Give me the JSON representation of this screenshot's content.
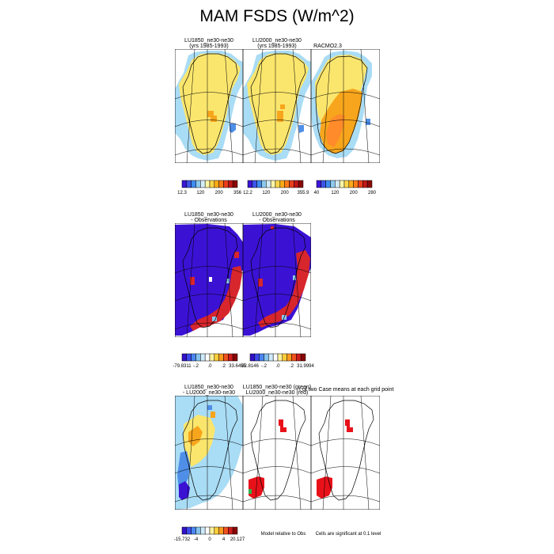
{
  "page_title": "MAM FSDS (W/m^2)",
  "row1": {
    "panel_titles": [
      "LU1850_ne30-ne30",
      "LU2000_ne30-ne30",
      "RACMO2.3"
    ],
    "panel_subtitles": [
      "(yrs 1985-1993)",
      "(yrs 1985-1993)",
      ""
    ],
    "colorbar_labels": [
      [
        "12.3",
        "120",
        "200",
        "356"
      ],
      [
        "12.2",
        "120",
        "200",
        "355.9"
      ],
      [
        "40",
        "120",
        "200",
        "280"
      ]
    ]
  },
  "row2": {
    "panel_titles": [
      "LU1850_ne30-ne30",
      "LU2000_ne30-ne30"
    ],
    "panel_subtitles": [
      "- Observations",
      "- Observations"
    ],
    "colorbar_labels": [
      [
        "-79.8311",
        "-.2",
        ".0",
        ".2",
        "33.6455"
      ],
      [
        "82.8146",
        "-.2",
        ".0",
        ".2",
        "31.9994"
      ]
    ]
  },
  "row3": {
    "panel_titles": [
      "LU1850_ne30-ne30",
      "LU1850_ne30-ne30 (green)",
      "t of two Case means at each grid point"
    ],
    "panel_subtitles": [
      "- LU2000_ne30-ne30",
      "LU2000_ne30-ne30 (red)",
      ""
    ],
    "colorbar_labels": [
      "-15.732",
      "-4",
      "0",
      "4",
      "20.127"
    ],
    "notes": [
      "Model relative to Obs",
      "Cells are significant at 0.1 level"
    ]
  },
  "colors": {
    "abs_palette": [
      "#3a16d6",
      "#3e55e8",
      "#3f8cf0",
      "#8ec8ef",
      "#d4ecf8",
      "#fff7a8",
      "#ffd84a",
      "#ffac1a",
      "#ff7a16",
      "#e8401e",
      "#c01818",
      "#8c0808"
    ],
    "diff_palette": [
      "#3310c8",
      "#3d4cec",
      "#4a86f2",
      "#86c3ef",
      "#cdeafb",
      "#ffffff",
      "#fff29a",
      "#ffce3a",
      "#ff9b20",
      "#f0521e",
      "#cc1d1d",
      "#8a0606"
    ],
    "map_ice": "#fbe66d",
    "map_ocean": "#a9dcf5",
    "map_orange": "#f7a51c",
    "map_deep_orange": "#ff8b2a",
    "bias_blue": "#3b12d4",
    "bias_red": "#d7262c",
    "sig_red": "#e8111a",
    "sig_green": "#2db34a"
  },
  "chart_data": [
    {
      "type": "heatmap",
      "title": "LU1850_ne30-ne30",
      "subtitle": "(yrs 1985-1993)",
      "colorbar_ticks": [
        "12.3",
        "120",
        "200",
        "356"
      ]
    },
    {
      "type": "heatmap",
      "title": "LU2000_ne30-ne30",
      "subtitle": "(yrs 1985-1993)",
      "colorbar_ticks": [
        "12.2",
        "120",
        "200",
        "355.9"
      ]
    },
    {
      "type": "heatmap",
      "title": "RACMO2.3",
      "colorbar_ticks": [
        "40",
        "120",
        "200",
        "280"
      ]
    },
    {
      "type": "heatmap",
      "title": "LU1850_ne30-ne30",
      "subtitle": "- Observations",
      "colorbar_ticks": [
        "-79.8311",
        "-.2",
        ".0",
        ".2",
        "33.6455"
      ]
    },
    {
      "type": "heatmap",
      "title": "LU2000_ne30-ne30",
      "subtitle": "- Observations",
      "colorbar_ticks": [
        "82.8146",
        "-.2",
        ".0",
        ".2",
        "31.9994"
      ]
    },
    {
      "type": "heatmap",
      "title": "LU1850_ne30-ne30",
      "subtitle": "- LU2000_ne30-ne30",
      "colorbar_ticks": [
        "-15.732",
        "-4",
        "0",
        "4",
        "20.127"
      ]
    },
    {
      "type": "heatmap",
      "title": "LU1850_ne30-ne30 (green)",
      "subtitle": "LU2000_ne30-ne30 (red)"
    },
    {
      "type": "heatmap",
      "title": "t of two Case means at each grid point"
    }
  ]
}
